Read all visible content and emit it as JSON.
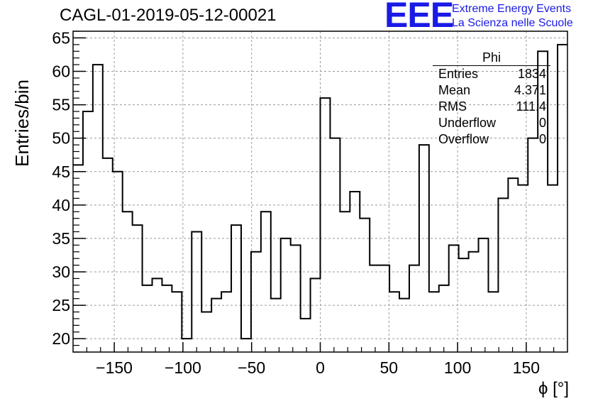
{
  "title": "CAGL-01-2019-05-12-00021",
  "logo": {
    "mark": "EEE",
    "line1": "Extreme Energy Events",
    "line2": "La Scienza nelle Scuole",
    "color": "#1a1ae6"
  },
  "stats": {
    "name": "Phi",
    "rows": [
      {
        "label": "Entries",
        "value": "1834"
      },
      {
        "label": "Mean",
        "value": "4.371"
      },
      {
        "label": "RMS",
        "value": "111.4"
      },
      {
        "label": "Underflow",
        "value": "0"
      },
      {
        "label": "Overflow",
        "value": "0"
      }
    ]
  },
  "chart_data": {
    "type": "histogram",
    "title": "CAGL-01-2019-05-12-00021",
    "xlabel": "ϕ [°]",
    "ylabel": "Entries/bin",
    "xlim": [
      -180,
      180
    ],
    "ylim": [
      18,
      66
    ],
    "bin_width": 7.2,
    "bin_edges_start": -180,
    "xticks": [
      -150,
      -100,
      -50,
      0,
      50,
      100,
      150
    ],
    "yticks": [
      20,
      25,
      30,
      35,
      40,
      45,
      50,
      55,
      60,
      65
    ],
    "grid": true,
    "line_color": "#000000",
    "values": [
      46,
      54,
      61,
      47,
      45,
      39,
      37,
      28,
      29,
      28,
      27,
      20,
      36,
      24,
      26,
      27,
      37,
      20,
      33,
      39,
      26,
      35,
      34,
      23,
      29,
      56,
      50,
      39,
      42,
      38,
      31,
      31,
      27,
      26,
      31,
      49,
      27,
      28,
      34,
      32,
      33,
      35,
      27,
      41,
      44,
      43,
      50,
      63,
      43,
      64
    ]
  }
}
